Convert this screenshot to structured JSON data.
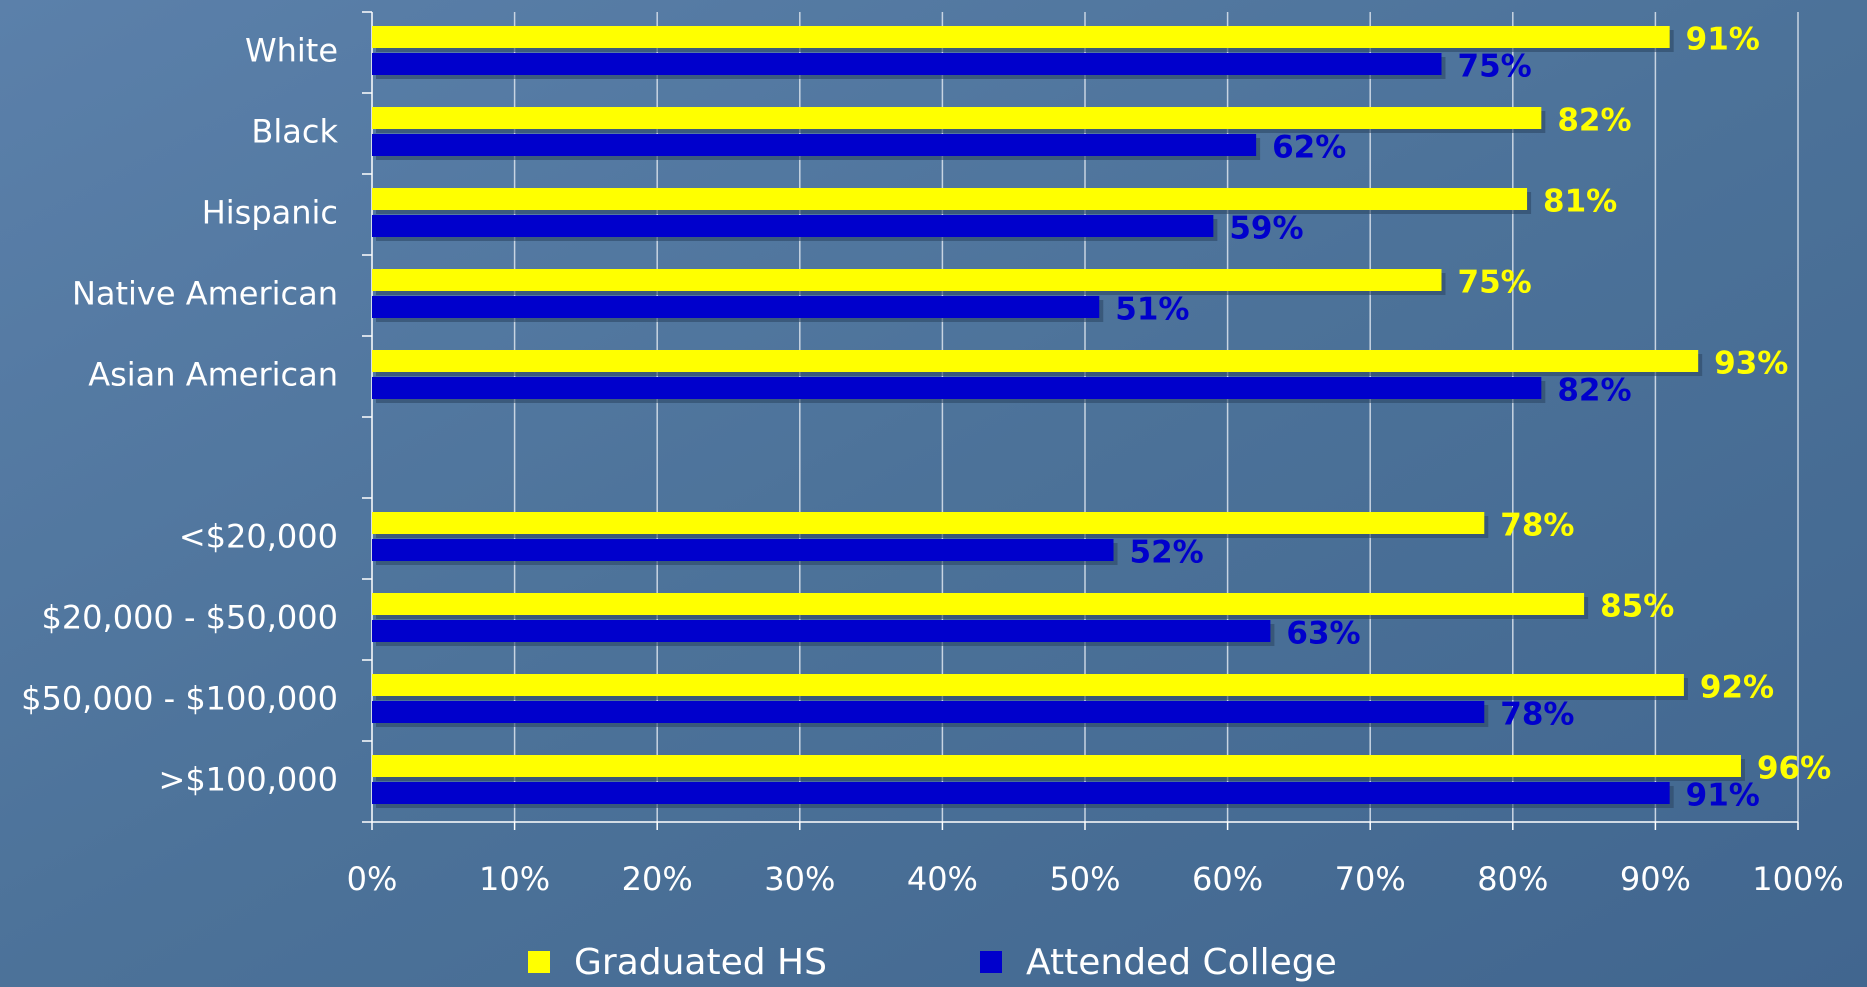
{
  "chart_data": {
    "type": "barh",
    "categories": [
      "White",
      "Black",
      "Hispanic",
      "Native American",
      "Asian American",
      null,
      "<$20,000",
      "$20,000 - $50,000",
      "$50,000 - $100,000",
      ">$100,000"
    ],
    "series": [
      {
        "name": "Graduated HS",
        "color": "#ffff00",
        "values": [
          91,
          82,
          81,
          75,
          93,
          null,
          78,
          85,
          92,
          96
        ],
        "value_labels": [
          "91%",
          "82%",
          "81%",
          "75%",
          "93%",
          null,
          "78%",
          "85%",
          "92%",
          "96%"
        ]
      },
      {
        "name": "Attended College",
        "color": "#0000cc",
        "values": [
          75,
          62,
          59,
          51,
          82,
          null,
          52,
          63,
          78,
          91
        ],
        "value_labels": [
          "75%",
          "62%",
          "59%",
          "51%",
          "82%",
          null,
          "52%",
          "63%",
          "78%",
          "91%"
        ]
      }
    ],
    "xlim": [
      0,
      100
    ],
    "xticks": [
      {
        "value": 0,
        "label": "0%"
      },
      {
        "value": 10,
        "label": "10%"
      },
      {
        "value": 20,
        "label": "20%"
      },
      {
        "value": 30,
        "label": "30%"
      },
      {
        "value": 40,
        "label": "40%"
      },
      {
        "value": 50,
        "label": "50%"
      },
      {
        "value": 60,
        "label": "60%"
      },
      {
        "value": 70,
        "label": "70%"
      },
      {
        "value": 80,
        "label": "80%"
      },
      {
        "value": 90,
        "label": "90%"
      },
      {
        "value": 100,
        "label": "100%"
      }
    ],
    "grid": true,
    "legend": "bottom"
  }
}
